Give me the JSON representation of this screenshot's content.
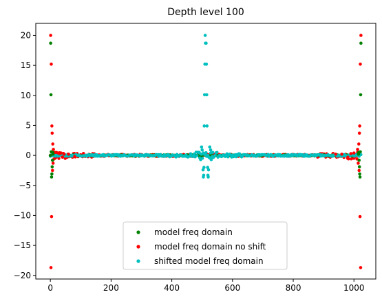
{
  "chart_data": {
    "type": "scatter",
    "title": "Depth level 100",
    "xlabel": "",
    "ylabel": "",
    "xlim": [
      -48,
      1072
    ],
    "ylim": [
      -20.6,
      22.0
    ],
    "x_ticks": [
      0,
      200,
      400,
      600,
      800,
      1000
    ],
    "y_ticks": [
      20,
      15,
      10,
      5,
      0,
      -5,
      -10,
      -15,
      -20
    ],
    "grid": false,
    "legend_position": "lower center",
    "series": [
      {
        "name": "model freq domain",
        "color": "#008000",
        "points": [
          [
            0,
            0.0
          ],
          [
            1,
            18.7
          ],
          [
            2,
            10.1
          ],
          [
            3,
            0.6
          ],
          [
            4,
            -3.6
          ],
          [
            5,
            -3.1
          ],
          [
            6,
            -1.9
          ],
          [
            7,
            -0.8
          ],
          [
            8,
            0.5
          ],
          [
            9,
            0.2
          ],
          [
            1015,
            0.2
          ],
          [
            1016,
            0.5
          ],
          [
            1017,
            -0.8
          ],
          [
            1018,
            -1.9
          ],
          [
            1019,
            -3.1
          ],
          [
            1020,
            -3.6
          ],
          [
            1021,
            0.6
          ],
          [
            1022,
            10.1
          ],
          [
            1023,
            18.7
          ]
        ]
      },
      {
        "name": "model freq domain no shift",
        "color": "#ff0000",
        "points": [
          [
            0,
            0.0
          ],
          [
            1,
            20.0
          ],
          [
            2,
            -18.7
          ],
          [
            3,
            15.2
          ],
          [
            4,
            -10.2
          ],
          [
            5,
            4.9
          ],
          [
            6,
            3.7
          ],
          [
            7,
            -2.5
          ],
          [
            8,
            1.9
          ],
          [
            9,
            -1.3
          ],
          [
            10,
            1.0
          ],
          [
            12,
            -0.6
          ],
          [
            15,
            0.5
          ],
          [
            20,
            0.5
          ],
          [
            26,
            0.4
          ],
          [
            30,
            0.3
          ],
          [
            35,
            0.4
          ],
          [
            40,
            -0.3
          ],
          [
            45,
            0.2
          ],
          [
            60,
            0.2
          ],
          [
            80,
            -0.2
          ],
          [
            1010,
            -0.6
          ],
          [
            1012,
            1.0
          ],
          [
            1014,
            -1.3
          ],
          [
            1016,
            1.9
          ],
          [
            1017,
            -2.5
          ],
          [
            1018,
            3.7
          ],
          [
            1019,
            4.9
          ],
          [
            1020,
            -10.2
          ],
          [
            1021,
            15.2
          ],
          [
            1022,
            -18.7
          ],
          [
            1023,
            20.0
          ],
          [
            1000,
            0.4
          ],
          [
            990,
            0.3
          ],
          [
            980,
            -0.3
          ],
          [
            960,
            0.2
          ],
          [
            940,
            0.2
          ]
        ]
      },
      {
        "name": "shifted model freq domain",
        "color": "#00bfbf",
        "points": [
          [
            507,
            4.9
          ],
          [
            508,
            10.1
          ],
          [
            509,
            15.2
          ],
          [
            510,
            20.0
          ],
          [
            511,
            18.7
          ],
          [
            512,
            0.0
          ],
          [
            513,
            18.7
          ],
          [
            514,
            15.2
          ],
          [
            515,
            10.1
          ],
          [
            516,
            4.9
          ],
          [
            503,
            -2.4
          ],
          [
            504,
            -3.6
          ],
          [
            505,
            -3.3
          ],
          [
            506,
            -2.0
          ],
          [
            518,
            -2.0
          ],
          [
            519,
            -3.3
          ],
          [
            520,
            -3.6
          ],
          [
            521,
            -2.4
          ],
          [
            498,
            1.4
          ],
          [
            500,
            0.9
          ],
          [
            495,
            -0.7
          ],
          [
            525,
            1.4
          ],
          [
            528,
            0.9
          ],
          [
            530,
            -0.7
          ],
          [
            490,
            0.5
          ],
          [
            535,
            0.5
          ]
        ]
      }
    ]
  }
}
